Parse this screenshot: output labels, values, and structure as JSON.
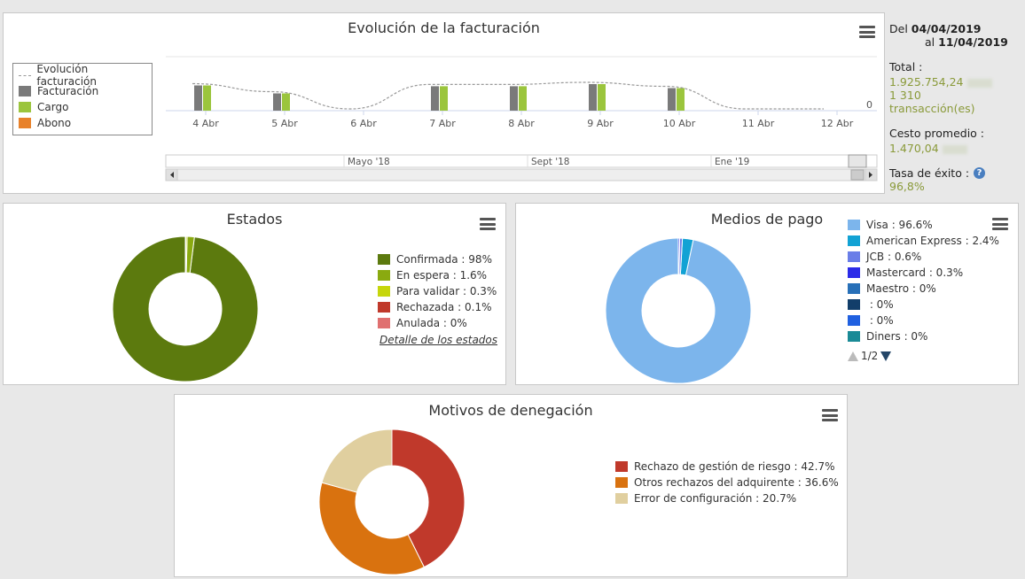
{
  "evolution": {
    "title": "Evolución de la facturación",
    "legend": [
      {
        "label": "Evolución facturación",
        "type": "line",
        "color": "#999999"
      },
      {
        "label": "Facturación",
        "type": "box",
        "color": "#7a7a7a"
      },
      {
        "label": "Cargo",
        "type": "box",
        "color": "#9bc53d"
      },
      {
        "label": "Abono",
        "type": "box",
        "color": "#e8812a"
      }
    ],
    "zero_label": "0",
    "navigator_labels": [
      "Mayo '18",
      "Sept '18",
      "Ene '19"
    ]
  },
  "chart_data": [
    {
      "type": "bar",
      "categories": [
        "4 Abr",
        "5 Abr",
        "6 Abr",
        "7 Abr",
        "8 Abr",
        "9 Abr",
        "10 Abr",
        "11 Abr",
        "12 Abr"
      ],
      "series": [
        {
          "name": "Facturación",
          "values": [
            0.95,
            0.65,
            0,
            0.92,
            0.92,
            1.0,
            0.85,
            0,
            0
          ]
        },
        {
          "name": "Cargo",
          "values": [
            0.95,
            0.65,
            0,
            0.92,
            0.92,
            1.0,
            0.85,
            0,
            0
          ]
        },
        {
          "name": "Evolución facturación",
          "values": [
            0.95,
            0.65,
            0,
            0.92,
            0.92,
            1.0,
            0.85,
            0,
            0
          ]
        }
      ]
    },
    {
      "type": "pie",
      "title": "Estados",
      "labels": [
        "Confirmada",
        "En espera",
        "Para validar",
        "Rechazada",
        "Anulada"
      ],
      "values": [
        98,
        1.6,
        0.3,
        0.1,
        0
      ],
      "colors": [
        "#5c7a0e",
        "#8aaa10",
        "#c6d60c",
        "#c0392b",
        "#e07070"
      ]
    },
    {
      "type": "pie",
      "title": "Medios de pago",
      "labels": [
        "Visa",
        "American Express",
        "JCB",
        "Mastercard",
        "Maestro",
        "",
        "",
        "Diners"
      ],
      "values": [
        96.6,
        2.4,
        0.6,
        0.3,
        0,
        0,
        0,
        0
      ],
      "colors": [
        "#7cb5ec",
        "#12a2d4",
        "#6a7ee8",
        "#2b2be8",
        "#2870b8",
        "#123e6a",
        "#2060e0",
        "#1a8a96"
      ]
    },
    {
      "type": "pie",
      "title": "Motivos de denegación",
      "labels": [
        "Rechazo de gestión de riesgo",
        "Otros rechazos del adquirente",
        "Error de configuración"
      ],
      "values": [
        42.7,
        36.6,
        20.7
      ],
      "colors": [
        "#c0392b",
        "#d9720f",
        "#e0cf9f"
      ]
    }
  ],
  "summary": {
    "from_label": "Del",
    "from_date": "04/04/2019",
    "to_label": "al",
    "to_date": "11/04/2019",
    "total_label": "Total :",
    "total_value": "1.925.754,24",
    "transactions": "1 310",
    "transactions_label": "transacción(es)",
    "avg_label": "Cesto promedio :",
    "avg_value": "1.470,04",
    "success_label": "Tasa de éxito :",
    "success_value": "96,8%"
  },
  "estados": {
    "title": "Estados",
    "legend": [
      "Confirmada : 98%",
      "En espera : 1.6%",
      "Para validar : 0.3%",
      "Rechazada : 0.1%",
      "Anulada : 0%"
    ],
    "detail_link": "Detalle de los estados"
  },
  "medios": {
    "title": "Medios de pago",
    "legend": [
      "Visa : 96.6%",
      "American Express : 2.4%",
      "JCB : 0.6%",
      "Mastercard : 0.3%",
      "Maestro : 0%",
      " : 0%",
      " : 0%",
      "Diners : 0%"
    ],
    "pager": "1/2"
  },
  "motivos": {
    "title": "Motivos de denegación",
    "legend": [
      "Rechazo de gestión de riesgo : 42.7%",
      "Otros rechazos del adquirente : 36.6%",
      "Error de configuración : 20.7%"
    ]
  }
}
